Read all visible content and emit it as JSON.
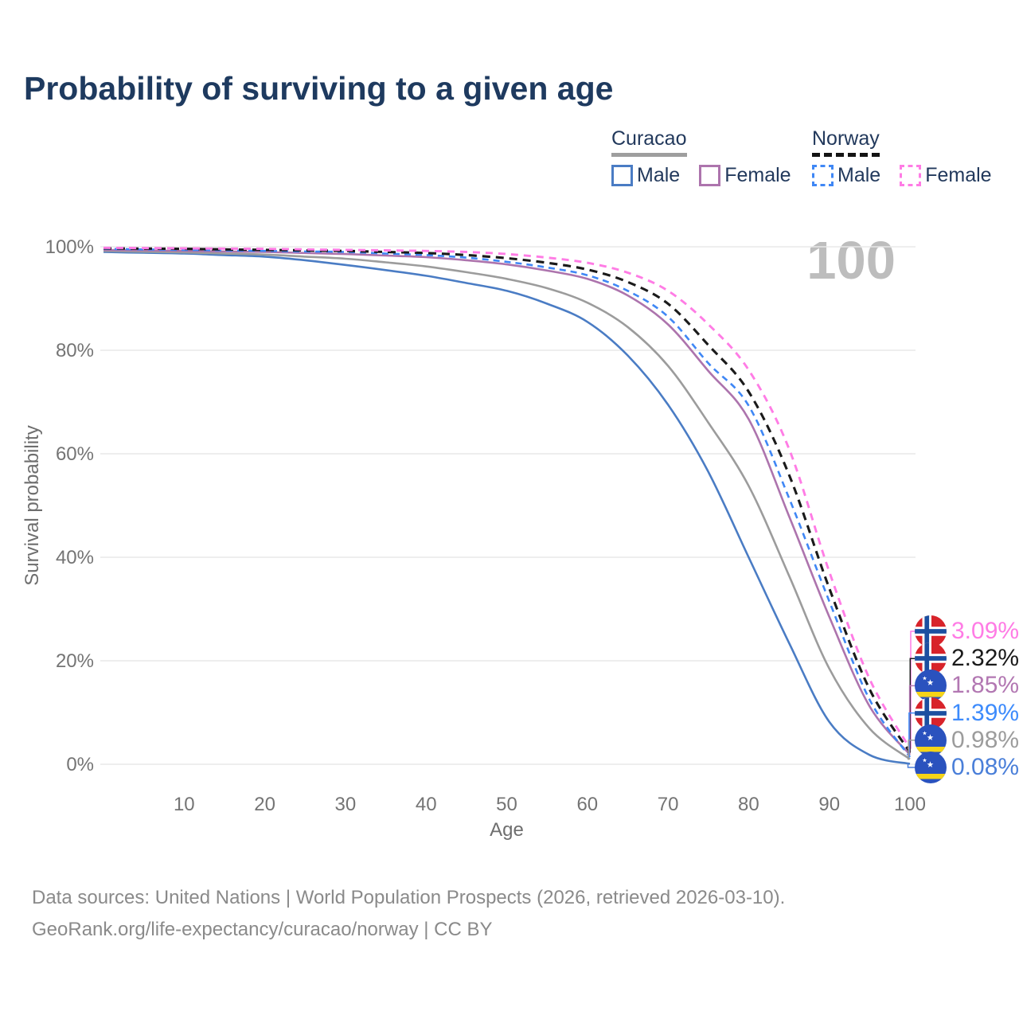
{
  "page": {
    "title": "Probability of surviving to a given age",
    "title_color": "#1e3a5f",
    "background": "#ffffff"
  },
  "watermark": {
    "text": "100",
    "color": "#bdbdbd"
  },
  "legend": {
    "groups": [
      {
        "name": "Curacao",
        "line_style": "solid",
        "underline_color": "#9e9e9e",
        "items": [
          {
            "label": "Male",
            "color": "#4a7cc4",
            "dashed": false
          },
          {
            "label": "Female",
            "color": "#ad74ad",
            "dashed": false
          }
        ]
      },
      {
        "name": "Norway",
        "line_style": "dashed",
        "underline_color": "#141414",
        "items": [
          {
            "label": "Male",
            "color": "#3f87f5",
            "dashed": true
          },
          {
            "label": "Female",
            "color": "#ff7ce5",
            "dashed": true
          }
        ]
      }
    ]
  },
  "chart_data": {
    "type": "line",
    "title": "Probability of surviving to a given age",
    "xlabel": "Age",
    "ylabel": "Survival probability",
    "xlim": [
      0,
      100
    ],
    "ylim": [
      0,
      100
    ],
    "grid": "horizontal",
    "x_ticks": [
      10,
      20,
      30,
      40,
      50,
      60,
      70,
      80,
      90,
      100
    ],
    "y_ticks": [
      "0%",
      "20%",
      "40%",
      "60%",
      "80%",
      "100%"
    ],
    "legend_position": "top-right",
    "x": [
      0,
      5,
      10,
      15,
      20,
      25,
      30,
      35,
      40,
      45,
      50,
      55,
      60,
      65,
      70,
      75,
      80,
      85,
      90,
      95,
      100
    ],
    "series": [
      {
        "name": "Curacao Male",
        "color": "#4a7cc4",
        "dash": null,
        "width": 2.6,
        "values": [
          99.0,
          98.85,
          98.7,
          98.4,
          98.1,
          97.4,
          96.5,
          95.5,
          94.4,
          93.0,
          91.5,
          89.0,
          85.5,
          79.0,
          69.5,
          56.5,
          40.0,
          23.5,
          8.2,
          1.8,
          0.08
        ],
        "end_label": "0.08%"
      },
      {
        "name": "Curacao Total",
        "color": "#9c9c9c",
        "dash": null,
        "width": 2.6,
        "values": [
          99.2,
          99.05,
          98.9,
          98.7,
          98.5,
          98.1,
          97.7,
          97.0,
          96.2,
          95.1,
          93.8,
          92.0,
          89.2,
          84.5,
          77.0,
          66.0,
          53.8,
          36.5,
          18.5,
          6.9,
          0.98
        ],
        "end_label": "0.98%"
      },
      {
        "name": "Curacao Female",
        "color": "#ad74ad",
        "dash": null,
        "width": 2.6,
        "values": [
          99.4,
          99.3,
          99.2,
          99.1,
          99.0,
          98.8,
          98.6,
          98.3,
          98.0,
          97.4,
          96.6,
          95.4,
          93.8,
          90.6,
          85.0,
          76.0,
          66.7,
          48.0,
          28.5,
          11.2,
          1.85
        ],
        "end_label": "1.85%"
      },
      {
        "name": "Norway Male",
        "color": "#3f87f5",
        "dash": "8 6",
        "width": 2.6,
        "values": [
          99.6,
          99.5,
          99.4,
          99.3,
          99.2,
          99.1,
          99.0,
          98.7,
          98.4,
          97.9,
          97.1,
          96.0,
          94.5,
          91.5,
          86.5,
          77.5,
          69.3,
          51.5,
          31.5,
          12.5,
          1.39
        ],
        "end_label": "1.39%"
      },
      {
        "name": "Norway Total",
        "color": "#1a1a1a",
        "dash": "10 7",
        "width": 3.1,
        "values": [
          99.7,
          99.65,
          99.6,
          99.5,
          99.4,
          99.3,
          99.2,
          99.0,
          98.8,
          98.4,
          97.8,
          96.9,
          95.6,
          93.2,
          89.0,
          81.0,
          72.0,
          56.0,
          34.0,
          14.5,
          2.32
        ],
        "end_label": "2.32%"
      },
      {
        "name": "Norway Female",
        "color": "#ff7ce5",
        "dash": "9 7",
        "width": 2.9,
        "values": [
          99.8,
          99.75,
          99.7,
          99.65,
          99.6,
          99.5,
          99.4,
          99.3,
          99.2,
          99.0,
          98.6,
          97.9,
          96.9,
          95.0,
          91.5,
          85.0,
          76.2,
          61.0,
          37.2,
          16.5,
          3.09
        ],
        "end_label": "3.09%"
      }
    ]
  },
  "end_labels": [
    {
      "value": "3.09%",
      "numeric": 3.09,
      "flag": "norway",
      "series": "Norway Female",
      "color": "#ff7ce5"
    },
    {
      "value": "2.32%",
      "numeric": 2.32,
      "flag": "norway",
      "series": "Norway Total",
      "color": "#1a1a1a"
    },
    {
      "value": "1.85%",
      "numeric": 1.85,
      "flag": "curacao",
      "series": "Curacao Female",
      "color": "#b277b2"
    },
    {
      "value": "1.39%",
      "numeric": 1.39,
      "flag": "norway",
      "series": "Norway Male",
      "color": "#3d8bfc"
    },
    {
      "value": "0.98%",
      "numeric": 0.98,
      "flag": "curacao",
      "series": "Curacao Total",
      "color": "#9c9c9c"
    },
    {
      "value": "0.08%",
      "numeric": 0.08,
      "flag": "curacao",
      "series": "Curacao Male",
      "color": "#4a7fd9"
    }
  ],
  "footer": {
    "line1": "Data sources: United Nations | World Population Prospects (2026, retrieved 2026-03-10).",
    "line2": "GeoRank.org/life-expectancy/curacao/norway | CC BY"
  }
}
